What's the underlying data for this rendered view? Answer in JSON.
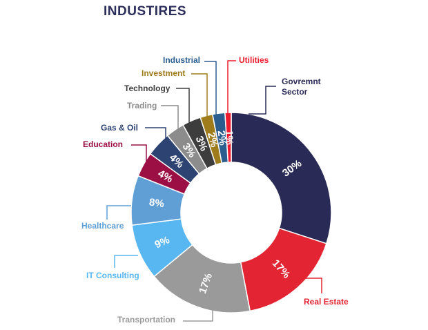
{
  "chart_data": {
    "type": "pie",
    "title": "INDUSTIRES",
    "donut": true,
    "slices": [
      {
        "label": "Govremnt Sector",
        "value": 30,
        "display": "30%",
        "color": "#2a2a57"
      },
      {
        "label": "Real Estate",
        "value": 17,
        "display": "17%",
        "color": "#e32533"
      },
      {
        "label": "Transportation",
        "value": 17,
        "display": "17%",
        "color": "#9a9a9a"
      },
      {
        "label": "IT Consulting",
        "value": 9,
        "display": "9%",
        "color": "#58b6f0"
      },
      {
        "label": "Healthcare",
        "value": 8,
        "display": "8%",
        "color": "#5f9fd6"
      },
      {
        "label": "Education",
        "value": 4,
        "display": "4%",
        "color": "#9c0f45"
      },
      {
        "label": "Gas & Oil",
        "value": 4,
        "display": "4%",
        "color": "#2d4372"
      },
      {
        "label": "Trading",
        "value": 3,
        "display": "3%",
        "color": "#8c8c8c"
      },
      {
        "label": "Technology",
        "value": 3,
        "display": "3%",
        "color": "#3d3d3d"
      },
      {
        "label": "Investment",
        "value": 2,
        "display": "2%",
        "color": "#9e7c1c"
      },
      {
        "label": "Industrial",
        "value": 2,
        "display": "2%",
        "color": "#2b5d8f"
      },
      {
        "label": "Utilities",
        "value": 1,
        "display": "1%",
        "color": "#ee1c2e"
      }
    ]
  }
}
